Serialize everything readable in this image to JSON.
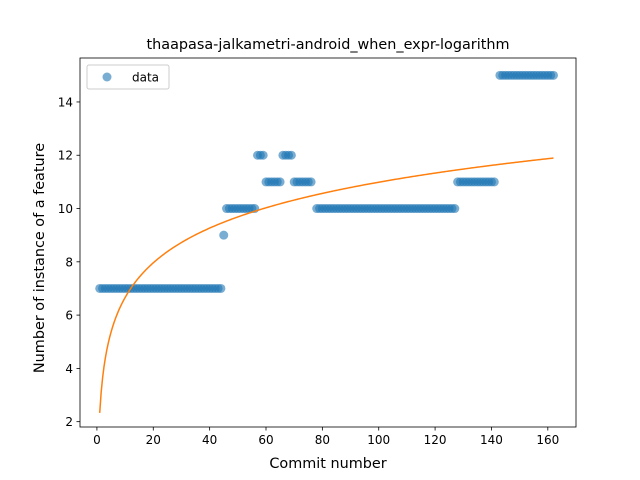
{
  "chart_data": {
    "type": "scatter",
    "title": "thaapasa-jalkametri-android_when_expr-logarithm",
    "xlabel": "Commit number",
    "ylabel": "Number of instance of a feature",
    "xlim": [
      -6,
      170
    ],
    "ylim": [
      1.8,
      15.65
    ],
    "xticks": [
      0,
      20,
      40,
      60,
      80,
      100,
      120,
      140,
      160
    ],
    "yticks": [
      2,
      4,
      6,
      8,
      10,
      12,
      14
    ],
    "grid": false,
    "legend_position": "upper-left",
    "colors": {
      "data": "#1f77b4",
      "fit": "#ff7f0e"
    },
    "series": [
      {
        "name": "data",
        "kind": "points",
        "segments": [
          {
            "from": 1,
            "to": 44,
            "y": 7
          },
          {
            "from": 45,
            "to": 45,
            "y": 9
          },
          {
            "from": 46,
            "to": 56,
            "y": 10
          },
          {
            "from": 57,
            "to": 59,
            "y": 12
          },
          {
            "from": 60,
            "to": 65,
            "y": 11
          },
          {
            "from": 66,
            "to": 69,
            "y": 12
          },
          {
            "from": 70,
            "to": 76,
            "y": 11
          },
          {
            "from": 78,
            "to": 127,
            "y": 10
          },
          {
            "from": 128,
            "to": 141,
            "y": 11
          },
          {
            "from": 143,
            "to": 162,
            "y": 15
          }
        ]
      },
      {
        "kind": "line",
        "model": "a + b*ln(x)",
        "a": 2.33,
        "b": 1.88,
        "x_range": [
          1,
          162
        ]
      }
    ]
  }
}
